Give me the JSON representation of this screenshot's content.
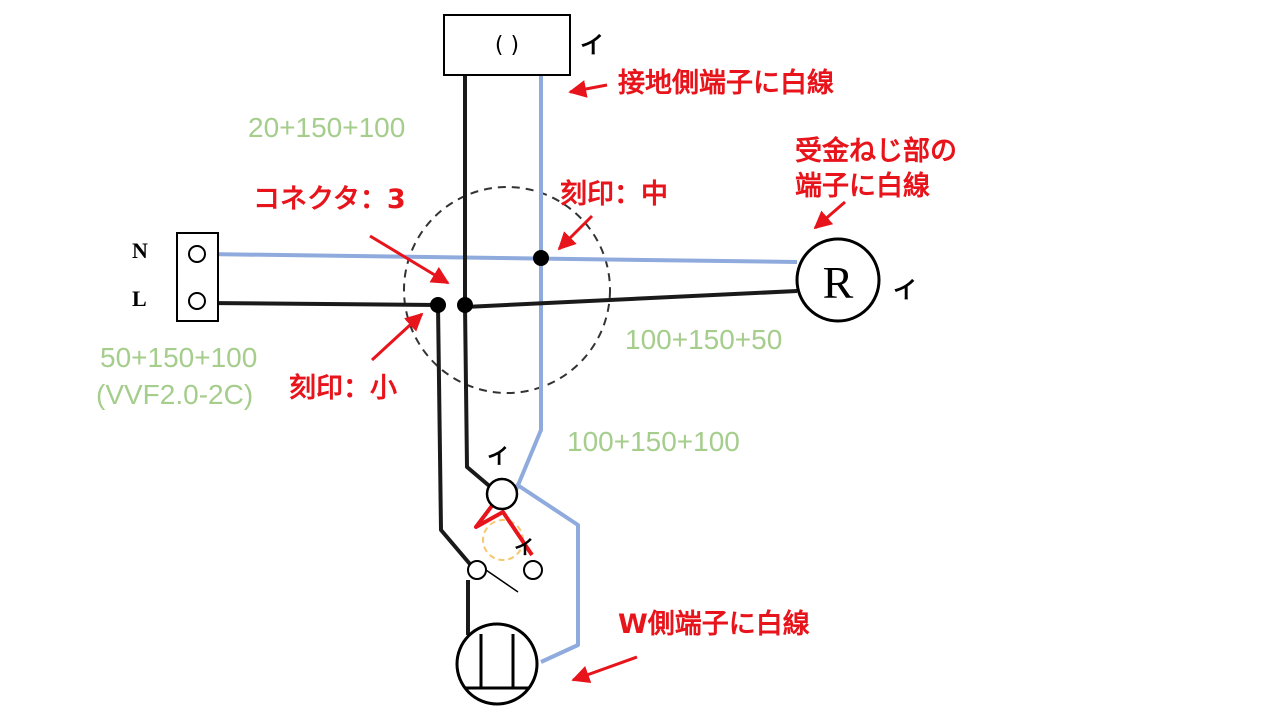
{
  "ceiling_box": {
    "label": "( )",
    "tag": "イ"
  },
  "terminal": {
    "n_label": "N",
    "l_label": "L"
  },
  "receptacle": {
    "symbol": "R",
    "tag": "イ"
  },
  "switch": {
    "tag_top": "イ",
    "tag_mid": "イ"
  },
  "annotations": {
    "ground_side_white": "接地側端子に白線",
    "screw_part_line1": "受金ねじ部の",
    "screw_part_line2": "端子に白線",
    "connector": "コネクタ：3",
    "stamp_medium": "刻印：中",
    "stamp_small": "刻印：小",
    "w_side_white": "W側端子に白線"
  },
  "lengths": {
    "top": "20+150+100",
    "left_line1": "50+150+100",
    "left_line2": "(VVF2.0-2C)",
    "right": "100+150+50",
    "lower": "100+150+100"
  },
  "colors": {
    "black_wire": "#1a1a1a",
    "white_wire": "#8faadc",
    "annotation": "#e8141b",
    "length_label": "#a5cd8c",
    "dashed_circle": "#333333",
    "jumper": "#e8141b",
    "highlight": "#f5c76e"
  }
}
